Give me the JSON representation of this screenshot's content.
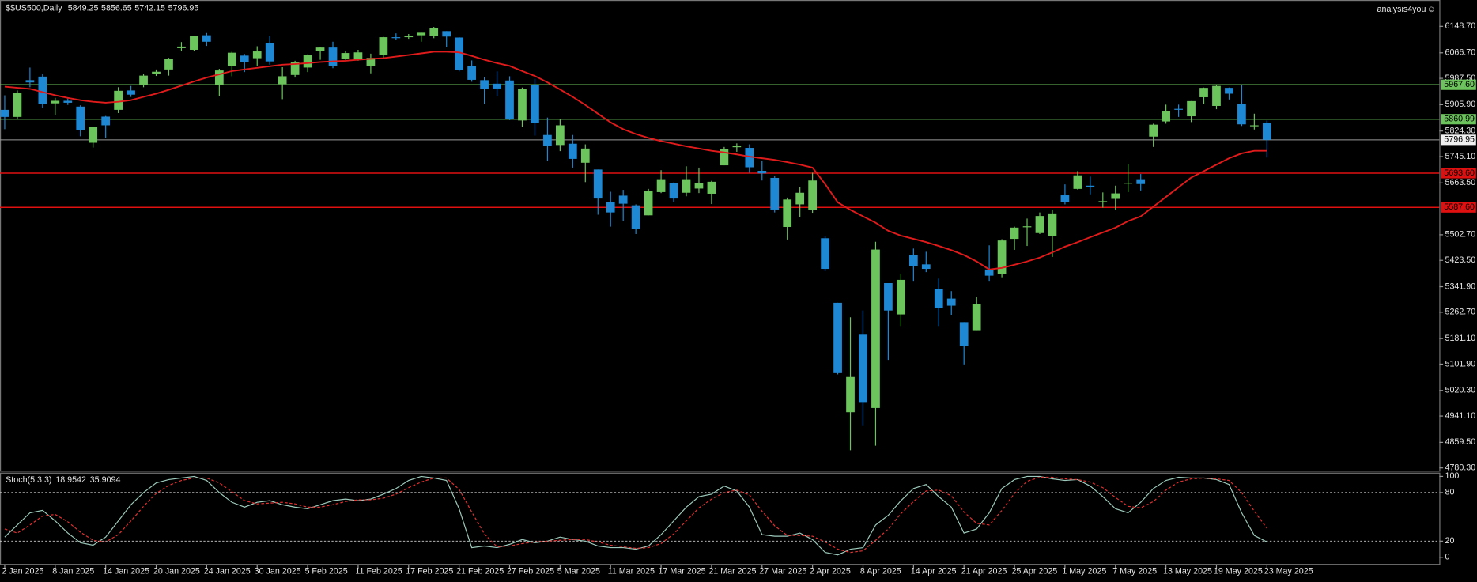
{
  "chart_data": [
    {
      "type": "candlestick",
      "title": "$$US500,Daily",
      "watermark": "analysis4you",
      "categories": [
        "2 Jan 2025",
        null,
        null,
        null,
        "8 Jan 2025",
        null,
        null,
        null,
        "14 Jan 2025",
        null,
        null,
        null,
        "20 Jan 2025",
        null,
        null,
        null,
        "24 Jan 2025",
        null,
        null,
        null,
        "30 Jan 2025",
        null,
        null,
        null,
        "5 Feb 2025",
        null,
        null,
        null,
        "11 Feb 2025",
        null,
        null,
        null,
        "17 Feb 2025",
        null,
        null,
        null,
        "21 Feb 2025",
        null,
        null,
        null,
        "27 Feb 2025",
        null,
        null,
        null,
        "5 Mar 2025",
        null,
        null,
        null,
        "11 Mar 2025",
        null,
        null,
        null,
        "17 Mar 2025",
        null,
        null,
        null,
        "21 Mar 2025",
        null,
        null,
        null,
        "27 Mar 2025",
        null,
        null,
        null,
        "2 Apr 2025",
        null,
        null,
        null,
        "8 Apr 2025",
        null,
        null,
        null,
        "14 Apr 2025",
        null,
        null,
        null,
        "21 Apr 2025",
        null,
        null,
        null,
        "25 Apr 2025",
        null,
        null,
        null,
        "1 May 2025",
        null,
        null,
        null,
        "7 May 2025",
        null,
        null,
        null,
        "13 May 2025",
        null,
        null,
        null,
        "19 May 2025",
        null,
        null,
        null,
        "23 May 2025"
      ],
      "ohlc": [
        [
          5890,
          5935,
          5830,
          5868
        ],
        [
          5868,
          5950,
          5860,
          5942
        ],
        [
          5982,
          6021,
          5960,
          5975
        ],
        [
          5993,
          6000,
          5896,
          5909
        ],
        [
          5910,
          5927,
          5874,
          5918
        ],
        [
          5918,
          5925,
          5905,
          5912
        ],
        [
          5900,
          5904,
          5808,
          5827
        ],
        [
          5788,
          5837,
          5773,
          5836
        ],
        [
          5869,
          5871,
          5802,
          5842
        ],
        [
          5890,
          5960,
          5880,
          5949
        ],
        [
          5950,
          5964,
          5930,
          5937
        ],
        [
          5969,
          6000,
          5960,
          5996
        ],
        [
          6000,
          6015,
          5995,
          6008
        ],
        [
          6015,
          6051,
          5996,
          6049
        ],
        [
          6081,
          6100,
          6071,
          6086
        ],
        [
          6076,
          6119,
          6071,
          6118
        ],
        [
          6121,
          6128,
          6088,
          6101
        ],
        [
          5969,
          6017,
          5932,
          6012
        ],
        [
          6026,
          6070,
          5994,
          6067
        ],
        [
          6058,
          6063,
          6007,
          6039
        ],
        [
          6050,
          6087,
          6027,
          6071
        ],
        [
          6096,
          6120,
          6030,
          6040
        ],
        [
          5970,
          6022,
          5923,
          5994
        ],
        [
          5998,
          6042,
          5990,
          6037
        ],
        [
          6021,
          6062,
          6007,
          6061
        ],
        [
          6073,
          6084,
          6045,
          6083
        ],
        [
          6083,
          6101,
          6019,
          6025
        ],
        [
          6049,
          6073,
          6045,
          6066
        ],
        [
          6049,
          6076,
          6042,
          6068
        ],
        [
          6025,
          6064,
          6003,
          6051
        ],
        [
          6060,
          6116,
          6051,
          6115
        ],
        [
          6115,
          6127,
          6107,
          6114
        ],
        [
          6115,
          6125,
          6110,
          6120
        ],
        [
          6121,
          6129,
          6101,
          6129
        ],
        [
          6118,
          6147,
          6112,
          6144
        ],
        [
          6134,
          6134,
          6085,
          6117
        ],
        [
          6114,
          6115,
          6009,
          6013
        ],
        [
          6027,
          6043,
          5977,
          5983
        ],
        [
          5982,
          5992,
          5908,
          5955
        ],
        [
          5971,
          6009,
          5932,
          5956
        ],
        [
          5981,
          5994,
          5858,
          5861
        ],
        [
          5857,
          5959,
          5837,
          5955
        ],
        [
          5968,
          5986,
          5810,
          5850
        ],
        [
          5812,
          5866,
          5732,
          5778
        ],
        [
          5781,
          5861,
          5762,
          5842
        ],
        [
          5785,
          5812,
          5711,
          5738
        ],
        [
          5726,
          5783,
          5666,
          5770
        ],
        [
          5705,
          5705,
          5565,
          5615
        ],
        [
          5603,
          5636,
          5528,
          5572
        ],
        [
          5624,
          5642,
          5546,
          5599
        ],
        [
          5594,
          5597,
          5505,
          5522
        ],
        [
          5563,
          5645,
          5563,
          5639
        ],
        [
          5635,
          5703,
          5632,
          5675
        ],
        [
          5662,
          5665,
          5603,
          5615
        ],
        [
          5633,
          5715,
          5622,
          5675
        ],
        [
          5646,
          5711,
          5632,
          5663
        ],
        [
          5630,
          5670,
          5598,
          5667
        ],
        [
          5718,
          5775,
          5718,
          5768
        ],
        [
          5775,
          5786,
          5760,
          5777
        ],
        [
          5772,
          5783,
          5695,
          5712
        ],
        [
          5701,
          5732,
          5671,
          5693
        ],
        [
          5679,
          5685,
          5572,
          5581
        ],
        [
          5527,
          5618,
          5488,
          5612
        ],
        [
          5597,
          5650,
          5558,
          5633
        ],
        [
          5580,
          5695,
          5571,
          5671
        ],
        [
          5492,
          5500,
          5390,
          5397
        ],
        [
          5292,
          5292,
          5070,
          5074
        ],
        [
          4953,
          5247,
          4835,
          5062
        ],
        [
          5193,
          5268,
          4910,
          4982
        ],
        [
          4966,
          5481,
          4849,
          5457
        ],
        [
          5353,
          5353,
          5115,
          5268
        ],
        [
          5256,
          5380,
          5220,
          5363
        ],
        [
          5441,
          5460,
          5360,
          5406
        ],
        [
          5411,
          5450,
          5387,
          5397
        ],
        [
          5335,
          5367,
          5220,
          5276
        ],
        [
          5305,
          5328,
          5255,
          5283
        ],
        [
          5232,
          5232,
          5101,
          5158
        ],
        [
          5207,
          5309,
          5207,
          5288
        ],
        [
          5395,
          5470,
          5360,
          5376
        ],
        [
          5381,
          5489,
          5371,
          5485
        ],
        [
          5490,
          5528,
          5456,
          5525
        ],
        [
          5529,
          5553,
          5468,
          5529
        ],
        [
          5508,
          5572,
          5505,
          5561
        ],
        [
          5499,
          5581,
          5434,
          5569
        ],
        [
          5625,
          5659,
          5597,
          5604
        ],
        [
          5645,
          5700,
          5643,
          5687
        ],
        [
          5655,
          5683,
          5628,
          5650
        ],
        [
          5606,
          5634,
          5587,
          5607
        ],
        [
          5614,
          5655,
          5579,
          5631
        ],
        [
          5663,
          5721,
          5635,
          5664
        ],
        [
          5675,
          5691,
          5640,
          5660
        ],
        [
          5807,
          5847,
          5775,
          5844
        ],
        [
          5854,
          5906,
          5847,
          5886
        ],
        [
          5893,
          5906,
          5868,
          5892
        ],
        [
          5870,
          5917,
          5852,
          5917
        ],
        [
          5929,
          5959,
          5908,
          5958
        ],
        [
          5902,
          5968,
          5892,
          5964
        ],
        [
          5958,
          5959,
          5922,
          5940
        ],
        [
          5909,
          5968,
          5840,
          5845
        ],
        [
          5842,
          5878,
          5829,
          5842
        ],
        [
          5849.25,
          5856.65,
          5742.15,
          5796.95
        ]
      ],
      "up_color": "#6cc45c",
      "down_color": "#1e88d4",
      "ma": {
        "color": "#e01b1b",
        "values": [
          5962,
          5958,
          5955,
          5945,
          5935,
          5927,
          5920,
          5915,
          5912,
          5915,
          5920,
          5930,
          5940,
          5952,
          5965,
          5978,
          5990,
          6000,
          6010,
          6015,
          6020,
          6025,
          6030,
          6032,
          6035,
          6038,
          6040,
          6042,
          6045,
          6048,
          6050,
          6055,
          6060,
          6065,
          6070,
          6070,
          6068,
          6057,
          6045,
          6035,
          6026,
          6010,
          5995,
          5975,
          5953,
          5930,
          5905,
          5878,
          5851,
          5830,
          5815,
          5803,
          5793,
          5785,
          5777,
          5770,
          5763,
          5758,
          5752,
          5745,
          5740,
          5735,
          5728,
          5720,
          5711,
          5660,
          5603,
          5580,
          5560,
          5540,
          5515,
          5500,
          5490,
          5480,
          5468,
          5455,
          5440,
          5420,
          5395,
          5400,
          5410,
          5420,
          5432,
          5448,
          5466,
          5480,
          5495,
          5510,
          5525,
          5545,
          5560,
          5590,
          5620,
          5650,
          5680,
          5700,
          5720,
          5740,
          5755,
          5763,
          5763
        ]
      },
      "levels": [
        {
          "value": 5967.6,
          "label": "5967.60",
          "color": "#6cc45c"
        },
        {
          "value": 5860.99,
          "label": "5860.99",
          "color": "#6cc45c"
        },
        {
          "value": 5693.6,
          "label": "5693.60",
          "color": "#e01010"
        },
        {
          "value": 5587.6,
          "label": "5587.60",
          "color": "#e01010"
        }
      ],
      "ylim": [
        4771.5,
        6218.7
      ],
      "yticks": [
        {
          "value": 6148.7,
          "label": "6148.70"
        },
        {
          "value": 6066.7,
          "label": "6066.70"
        },
        {
          "value": 5987.5,
          "label": "5987.50"
        },
        {
          "value": 5905.9,
          "label": "5905.90"
        },
        {
          "value": 5824.3,
          "label": "5824.30"
        },
        {
          "value": 5745.1,
          "label": "5745.10"
        },
        {
          "value": 5663.5,
          "label": "5663.50"
        },
        {
          "value": 5502.7,
          "label": "5502.70"
        },
        {
          "value": 5423.5,
          "label": "5423.50"
        },
        {
          "value": 5341.9,
          "label": "5341.90"
        },
        {
          "value": 5262.7,
          "label": "5262.70"
        },
        {
          "value": 5181.1,
          "label": "5181.10"
        },
        {
          "value": 5101.9,
          "label": "5101.90"
        },
        {
          "value": 5020.3,
          "label": "5020.30"
        },
        {
          "value": 4941.1,
          "label": "4941.10"
        },
        {
          "value": 4859.5,
          "label": "4859.50"
        },
        {
          "value": 4780.3,
          "label": "4780.30"
        }
      ]
    },
    {
      "type": "line",
      "title": "Stoch(5,3,3)",
      "series": [
        {
          "color": "#9cc9bb",
          "values": [
            25,
            40,
            55,
            58,
            45,
            30,
            18,
            15,
            25,
            45,
            65,
            80,
            92,
            96,
            98,
            100,
            95,
            80,
            68,
            62,
            68,
            70,
            65,
            62,
            60,
            65,
            70,
            72,
            70,
            72,
            78,
            85,
            95,
            100,
            98,
            95,
            60,
            12,
            14,
            12,
            16,
            22,
            18,
            20,
            25,
            22,
            20,
            14,
            12,
            12,
            10,
            14,
            28,
            45,
            62,
            75,
            78,
            88,
            82,
            62,
            28,
            26,
            26,
            30,
            22,
            6,
            3,
            10,
            12,
            40,
            52,
            70,
            85,
            90,
            75,
            62,
            30,
            35,
            55,
            85,
            96,
            100,
            100,
            97,
            95,
            96,
            88,
            75,
            60,
            55,
            68,
            85,
            95,
            99,
            98,
            98,
            96,
            90,
            55,
            27,
            18.9542
          ]
        },
        {
          "color": "#e03030",
          "dashed": true,
          "values": [
            35,
            30,
            40,
            51,
            53,
            44,
            31,
            21,
            19,
            28,
            45,
            63,
            79,
            89,
            95,
            98,
            98,
            92,
            81,
            70,
            66,
            67,
            68,
            66,
            62,
            62,
            65,
            69,
            71,
            71,
            73,
            78,
            86,
            93,
            98,
            98,
            84,
            56,
            29,
            13,
            14,
            17,
            19,
            20,
            21,
            22,
            22,
            19,
            15,
            13,
            11,
            12,
            17,
            29,
            45,
            61,
            72,
            80,
            83,
            77,
            57,
            39,
            27,
            27,
            26,
            19,
            10,
            6,
            8,
            21,
            35,
            54,
            69,
            82,
            83,
            76,
            56,
            42,
            40,
            58,
            79,
            94,
            99,
            99,
            97,
            96,
            93,
            86,
            74,
            63,
            61,
            69,
            83,
            93,
            97,
            98,
            97,
            95,
            80,
            57,
            35.9094
          ]
        }
      ],
      "levels": [
        80,
        20
      ],
      "ylim": [
        0,
        100
      ],
      "yticks": [
        100,
        80,
        20,
        0
      ]
    }
  ]
}
